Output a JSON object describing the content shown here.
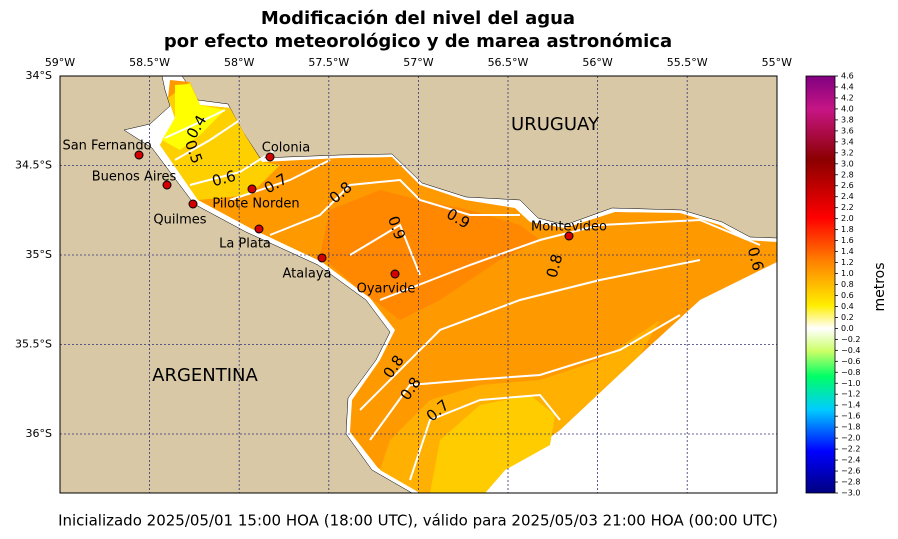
{
  "header": {
    "title": [
      "Modificación del nivel del agua",
      "por efecto meteorológico y de marea astronómica"
    ]
  },
  "axes": {
    "longitudes": [
      "59°W",
      "58.5°W",
      "58°W",
      "57.5°W",
      "57°W",
      "56.5°W",
      "56°W",
      "55.5°W",
      "55°W"
    ],
    "latitudes": [
      "34°S",
      "34.5°S",
      "35°S",
      "35.5°S",
      "36°S"
    ]
  },
  "regions": [
    "URUGUAY",
    "ARGENTINA"
  ],
  "places": [
    "San Fernando",
    "Buenos Aires",
    "Quilmes",
    "Colonia",
    "Pilote Norden",
    "La Plata",
    "Atalaya",
    "Oyarvide",
    "Montevideo"
  ],
  "contour_labels": [
    "0.4",
    "0.5",
    "0.6",
    "0.7",
    "0.8",
    "0.9",
    "0.9",
    "0.8",
    "0.8",
    "0.8",
    "0.7",
    "0.6"
  ],
  "colorbar": {
    "label": "metros",
    "ticks": [
      "4.6",
      "4.4",
      "4.2",
      "4.0",
      "3.8",
      "3.6",
      "3.4",
      "3.2",
      "3.0",
      "2.8",
      "2.6",
      "2.4",
      "2.2",
      "2.0",
      "1.8",
      "1.6",
      "1.4",
      "1.2",
      "1.0",
      "0.8",
      "0.6",
      "0.4",
      "0.2",
      "0.0",
      "−0.2",
      "−0.4",
      "−0.6",
      "−0.8",
      "−1.0",
      "−1.2",
      "−1.4",
      "−1.6",
      "−1.8",
      "−2.0",
      "−2.2",
      "−2.4",
      "−2.6",
      "−2.8",
      "−3.0"
    ]
  },
  "footer": "Inicializado 2025/05/01 15:00 HOA (18:00 UTC), válido para 2025/05/03 21:00 HOA (00:00 UTC)"
}
